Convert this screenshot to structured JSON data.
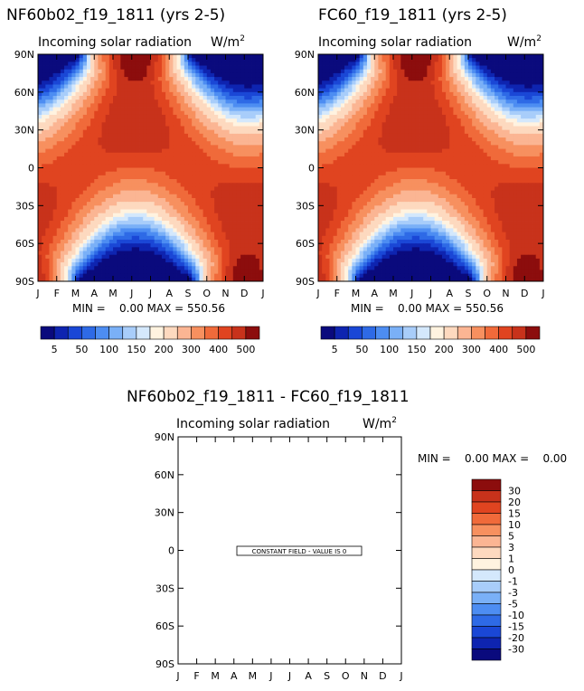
{
  "chart_data": [
    {
      "type": "heatmap",
      "title": "NF60b02_f19_1811 (yrs 2-5)",
      "subtitle": "Incoming solar radiation",
      "units": "W/m",
      "units_exp": "2",
      "x_ticks": [
        "J",
        "F",
        "M",
        "A",
        "M",
        "J",
        "J",
        "A",
        "S",
        "O",
        "N",
        "D",
        "J"
      ],
      "y_ticks": [
        "90N",
        "60N",
        "30N",
        "0",
        "30S",
        "60S",
        "90S"
      ],
      "ylim": [
        -90,
        90
      ],
      "stats": "MIN =    0.00 MAX = 550.56",
      "min": 0.0,
      "max": 550.56,
      "colorbar": {
        "labels": [
          "5",
          "50",
          "100",
          "150",
          "200",
          "300",
          "400",
          "500"
        ],
        "levels": [
          5,
          25,
          50,
          75,
          100,
          125,
          150,
          175,
          200,
          250,
          300,
          350,
          400,
          450,
          500
        ],
        "colors": [
          "#0a0a7d",
          "#0e24b0",
          "#1a47d6",
          "#2e6ae6",
          "#4d8df2",
          "#7ab0f7",
          "#a8cdfa",
          "#d4e8fc",
          "#fff3e0",
          "#fdd9bf",
          "#fbb593",
          "#f7905f",
          "#f06a3a",
          "#e04420",
          "#c8321b",
          "#8c0d0d"
        ]
      }
    },
    {
      "type": "heatmap",
      "title": "FC60_f19_1811 (yrs 2-5)",
      "subtitle": "Incoming solar radiation",
      "units": "W/m",
      "units_exp": "2",
      "x_ticks": [
        "J",
        "F",
        "M",
        "A",
        "M",
        "J",
        "J",
        "A",
        "S",
        "O",
        "N",
        "D",
        "J"
      ],
      "y_ticks": [
        "90N",
        "60N",
        "30N",
        "0",
        "30S",
        "60S",
        "90S"
      ],
      "ylim": [
        -90,
        90
      ],
      "stats": "MIN =    0.00 MAX = 550.56",
      "min": 0.0,
      "max": 550.56,
      "colorbar": {
        "labels": [
          "5",
          "50",
          "100",
          "150",
          "200",
          "300",
          "400",
          "500"
        ]
      }
    },
    {
      "type": "heatmap",
      "title": "NF60b02_f19_1811 - FC60_f19_1811",
      "subtitle": "Incoming solar radiation",
      "units": "W/m",
      "units_exp": "2",
      "x_ticks": [
        "J",
        "F",
        "M",
        "A",
        "M",
        "J",
        "J",
        "A",
        "S",
        "O",
        "N",
        "D",
        "J"
      ],
      "y_ticks": [
        "90N",
        "60N",
        "30N",
        "0",
        "30S",
        "60S",
        "90S"
      ],
      "ylim": [
        -90,
        90
      ],
      "stats": "MIN =    0.00 MAX =    0.00",
      "min": 0.0,
      "max": 0.0,
      "note": "CONSTANT FIELD - VALUE IS 0",
      "colorbar": {
        "labels": [
          "30",
          "20",
          "15",
          "10",
          "5",
          "3",
          "1",
          "0",
          "-1",
          "-3",
          "-5",
          "-10",
          "-15",
          "-20",
          "-30"
        ],
        "colors": [
          "#8c0d0d",
          "#c8321b",
          "#e04420",
          "#f06a3a",
          "#f7905f",
          "#fbb593",
          "#fdd9bf",
          "#fff3e0",
          "#d4e8fc",
          "#a8cdfa",
          "#7ab0f7",
          "#4d8df2",
          "#2e6ae6",
          "#1a47d6",
          "#0e24b0",
          "#0a0a7d"
        ]
      }
    }
  ]
}
